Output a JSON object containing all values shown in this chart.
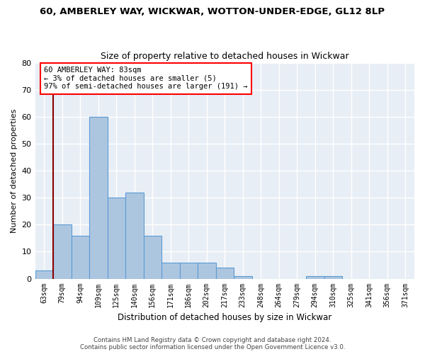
{
  "title_line1": "60, AMBERLEY WAY, WICKWAR, WOTTON-UNDER-EDGE, GL12 8LP",
  "title_line2": "Size of property relative to detached houses in Wickwar",
  "xlabel": "Distribution of detached houses by size in Wickwar",
  "ylabel": "Number of detached properties",
  "bin_labels": [
    "63sqm",
    "79sqm",
    "94sqm",
    "109sqm",
    "125sqm",
    "140sqm",
    "156sqm",
    "171sqm",
    "186sqm",
    "202sqm",
    "217sqm",
    "233sqm",
    "248sqm",
    "264sqm",
    "279sqm",
    "294sqm",
    "310sqm",
    "325sqm",
    "341sqm",
    "356sqm",
    "371sqm"
  ],
  "bar_values": [
    3,
    20,
    16,
    60,
    30,
    32,
    16,
    6,
    6,
    6,
    4,
    1,
    0,
    0,
    0,
    1,
    1,
    0,
    0,
    0,
    0
  ],
  "bar_color": "#adc6e0",
  "bar_edge_color": "#5b9bd5",
  "background_color": "#e8eef5",
  "grid_color": "#ffffff",
  "ylim": [
    0,
    80
  ],
  "yticks": [
    0,
    10,
    20,
    30,
    40,
    50,
    60,
    70,
    80
  ],
  "red_line_x": 0.5,
  "annotation_line1": "60 AMBERLEY WAY: 83sqm",
  "annotation_line2": "← 3% of detached houses are smaller (5)",
  "annotation_line3": "97% of semi-detached houses are larger (191) →",
  "footer_line1": "Contains HM Land Registry data © Crown copyright and database right 2024.",
  "footer_line2": "Contains public sector information licensed under the Open Government Licence v3.0."
}
